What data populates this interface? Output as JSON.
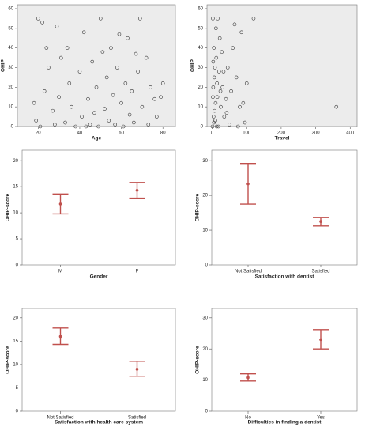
{
  "chart_data": [
    {
      "type": "scatter",
      "xlabel": "Age",
      "ylabel": "OHIP",
      "color": "#333333",
      "x": [
        20,
        22,
        24,
        18,
        19,
        21,
        23,
        25,
        27,
        28,
        30,
        31,
        33,
        35,
        36,
        38,
        40,
        41,
        42,
        44,
        45,
        46,
        48,
        49,
        50,
        52,
        53,
        54,
        55,
        56,
        57,
        58,
        60,
        61,
        62,
        63,
        64,
        65,
        66,
        68,
        69,
        70,
        72,
        73,
        74,
        76,
        77,
        79,
        80,
        29,
        34,
        43,
        47,
        51,
        59,
        67
      ],
      "y": [
        55,
        53,
        40,
        12,
        3,
        0,
        18,
        30,
        8,
        1,
        15,
        35,
        2,
        22,
        10,
        0,
        28,
        5,
        48,
        14,
        1,
        33,
        20,
        0,
        55,
        9,
        25,
        3,
        40,
        16,
        1,
        30,
        12,
        0,
        22,
        45,
        6,
        18,
        2,
        28,
        55,
        10,
        35,
        1,
        20,
        14,
        5,
        15,
        22,
        51,
        40,
        0,
        7,
        38,
        47,
        37
      ],
      "xlim": [
        10,
        86
      ],
      "xticks": [
        20,
        40,
        60,
        80
      ],
      "ylim": [
        0,
        62
      ],
      "yticks": [
        0,
        10,
        20,
        30,
        40,
        50,
        60
      ]
    },
    {
      "type": "scatter",
      "xlabel": "Travel",
      "ylabel": "OHIP",
      "color": "#333333",
      "x": [
        2,
        5,
        8,
        3,
        10,
        1,
        4,
        6,
        12,
        15,
        7,
        18,
        20,
        22,
        25,
        9,
        30,
        35,
        40,
        45,
        50,
        55,
        60,
        3,
        5,
        14,
        11,
        28,
        70,
        80,
        95,
        100,
        120,
        85,
        65,
        16,
        33,
        42,
        75,
        90,
        360,
        2,
        13,
        24
      ],
      "y": [
        55,
        40,
        30,
        20,
        12,
        0,
        5,
        25,
        35,
        15,
        8,
        0,
        28,
        45,
        10,
        3,
        20,
        5,
        14,
        30,
        1,
        18,
        40,
        33,
        2,
        22,
        50,
        38,
        25,
        10,
        2,
        22,
        55,
        48,
        52,
        55,
        28,
        7,
        0,
        12,
        10,
        15,
        0,
        18
      ],
      "xlim": [
        -15,
        420
      ],
      "xticks": [
        0,
        100,
        200,
        300,
        400
      ],
      "ylim": [
        0,
        62
      ],
      "yticks": [
        0,
        10,
        20,
        30,
        40,
        50,
        60
      ]
    },
    {
      "type": "errorbar",
      "xlabel": "Gender",
      "ylabel": "OHIP-score",
      "color": "#c0504d",
      "categories": [
        "M",
        "F"
      ],
      "values": [
        11.7,
        14.3
      ],
      "lower": [
        9.8,
        12.8
      ],
      "upper": [
        13.6,
        15.8
      ],
      "ylim": [
        0,
        22
      ],
      "yticks": [
        0,
        5,
        10,
        15,
        20
      ]
    },
    {
      "type": "errorbar",
      "xlabel": "Satisfaction with dentist",
      "ylabel": "OHIP-score",
      "color": "#c0504d",
      "categories": [
        "Not Satisfied",
        "Satisfied"
      ],
      "values": [
        23.3,
        12.5
      ],
      "lower": [
        17.5,
        11.2
      ],
      "upper": [
        29.2,
        13.7
      ],
      "ylim": [
        0,
        33
      ],
      "yticks": [
        0,
        10,
        20,
        30
      ]
    },
    {
      "type": "errorbar",
      "xlabel": "Satisfaction with health care system",
      "ylabel": "OHIP-score",
      "color": "#c0504d",
      "categories": [
        "Not Satisfied",
        "Satisfied"
      ],
      "values": [
        16.0,
        9.0
      ],
      "lower": [
        14.3,
        7.5
      ],
      "upper": [
        17.8,
        10.7
      ],
      "ylim": [
        0,
        22
      ],
      "yticks": [
        0,
        5,
        10,
        15,
        20
      ]
    },
    {
      "type": "errorbar",
      "xlabel": "Difficulties in finding a dentist",
      "ylabel": "OHIP-score",
      "color": "#c0504d",
      "categories": [
        "No",
        "Yes"
      ],
      "values": [
        10.8,
        23.0
      ],
      "lower": [
        9.7,
        20.0
      ],
      "upper": [
        12.0,
        26.2
      ],
      "ylim": [
        0,
        33
      ],
      "yticks": [
        0,
        10,
        20,
        30
      ]
    }
  ]
}
